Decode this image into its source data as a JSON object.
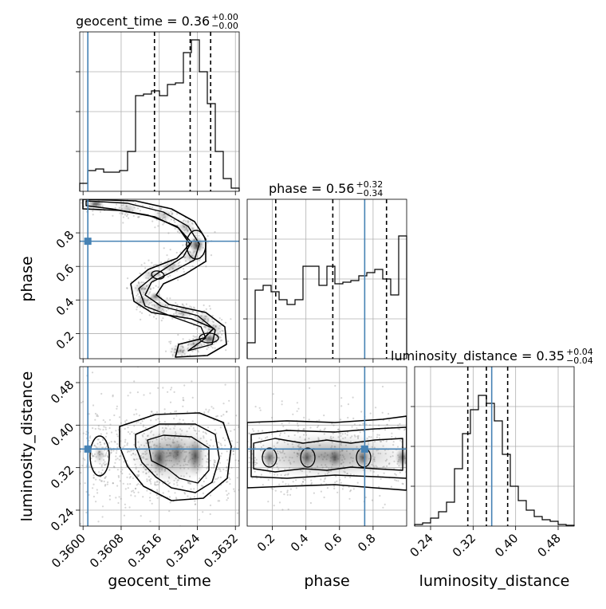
{
  "chart_data": {
    "type": "corner",
    "truth_color": "#4682b4",
    "parameters": [
      {
        "id": "geocent_time",
        "label": "geocent_time",
        "title": "geocent_time = 0.36",
        "median_text": "0.36",
        "err_plus": "+0.00",
        "err_minus": "−0.00",
        "range": [
          0.35993,
          0.36328
        ],
        "ticks": [
          0.36,
          0.3608,
          0.3616,
          0.3624,
          0.3632
        ],
        "tick_labels": [
          "0.3600",
          "0.3608",
          "0.3616",
          "0.3624",
          "0.3632"
        ],
        "truth": 0.3601,
        "quantiles": [
          0.3615,
          0.36225,
          0.36268
        ],
        "hist": [
          0.05,
          0.13,
          0.14,
          0.12,
          0.12,
          0.13,
          0.25,
          0.6,
          0.61,
          0.63,
          0.6,
          0.67,
          0.68,
          0.87,
          0.95,
          0.75,
          0.55,
          0.25,
          0.08,
          0.02
        ]
      },
      {
        "id": "phase",
        "label": "phase",
        "title": "phase = 0.56",
        "median_text": "0.56",
        "err_plus": "+0.32",
        "err_minus": "−0.34",
        "range": [
          0.05,
          1.0
        ],
        "ticks": [
          0.2,
          0.4,
          0.6,
          0.8
        ],
        "tick_labels": [
          "0.2",
          "0.4",
          "0.6",
          "0.8"
        ],
        "truth": 0.75,
        "quantiles": [
          0.22,
          0.56,
          0.88
        ],
        "hist": [
          0.1,
          0.43,
          0.46,
          0.42,
          0.37,
          0.34,
          0.37,
          0.58,
          0.58,
          0.46,
          0.58,
          0.47,
          0.48,
          0.49,
          0.52,
          0.54,
          0.56,
          0.5,
          0.4,
          0.77
        ]
      },
      {
        "id": "luminosity_distance",
        "label": "luminosity_distance",
        "title": "luminosity_distance = 0.35",
        "median_text": "0.35",
        "err_plus": "+0.04",
        "err_minus": "−0.04",
        "range": [
          0.21,
          0.51
        ],
        "ticks": [
          0.24,
          0.32,
          0.4,
          0.48
        ],
        "tick_labels": [
          "0.24",
          "0.32",
          "0.40",
          "0.48"
        ],
        "truth": 0.355,
        "quantiles": [
          0.31,
          0.345,
          0.385
        ],
        "hist": [
          0.01,
          0.02,
          0.05,
          0.09,
          0.15,
          0.36,
          0.58,
          0.73,
          0.82,
          0.77,
          0.66,
          0.45,
          0.25,
          0.16,
          0.1,
          0.06,
          0.04,
          0.03,
          0.01,
          0.005
        ]
      }
    ],
    "grid": true,
    "truth_markers": true
  }
}
